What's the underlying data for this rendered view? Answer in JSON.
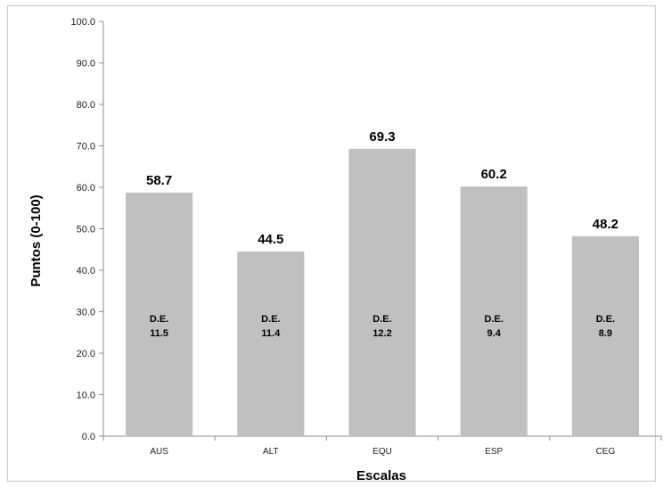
{
  "chart_data": {
    "type": "bar",
    "title": "",
    "xlabel": "Escalas",
    "ylabel": "Puntos (0-100)",
    "ylim": [
      0,
      100
    ],
    "y_ticks": [
      "0.0",
      "10.0",
      "20.0",
      "30.0",
      "40.0",
      "50.0",
      "60.0",
      "70.0",
      "80.0",
      "90.0",
      "100.0"
    ],
    "categories": [
      "AUS",
      "ALT",
      "EQU",
      "ESP",
      "CEG"
    ],
    "values": [
      58.7,
      44.5,
      69.3,
      60.2,
      48.2
    ],
    "value_labels": [
      "58.7",
      "44.5",
      "69.3",
      "60.2",
      "48.2"
    ],
    "sd_prefix": "D.E.",
    "sd_labels": [
      "11.5",
      "11.4",
      "12.2",
      "9.4",
      "8.9"
    ],
    "grid": false,
    "legend": "none",
    "colors": {
      "bar": "#c0c0c0",
      "axis": "#8c8c8c"
    }
  }
}
